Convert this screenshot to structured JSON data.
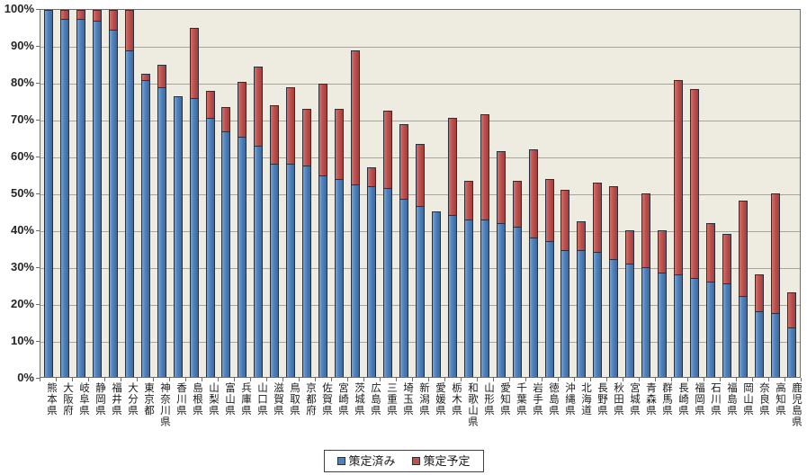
{
  "chart_data": {
    "type": "bar",
    "stacked": true,
    "title": "",
    "xlabel": "",
    "ylabel": "",
    "ylim": [
      0,
      100
    ],
    "y_tick_labels": [
      "100%",
      "90%",
      "80%",
      "70%",
      "60%",
      "50%",
      "40%",
      "30%",
      "20%",
      "10%",
      "0%"
    ],
    "grid": true,
    "legend_position": "bottom",
    "plot_background": "#EEECE1",
    "gridline_color": "#A8A49B",
    "categories": [
      "熊本県",
      "大阪府",
      "岐阜県",
      "静岡県",
      "福井県",
      "大分県",
      "東京都",
      "神奈川県",
      "香川県",
      "島根県",
      "山梨県",
      "富山県",
      "兵庫県",
      "山口県",
      "滋賀県",
      "鳥取県",
      "京都府",
      "佐賀県",
      "宮崎県",
      "茨城県",
      "広島県",
      "三重県",
      "埼玉県",
      "新潟県",
      "愛媛県",
      "栃木県",
      "和歌山県",
      "山形県",
      "愛知県",
      "千葉県",
      "岩手県",
      "徳島県",
      "沖縄県",
      "北海道",
      "長野県",
      "秋田県",
      "宮城県",
      "青森県",
      "群馬県",
      "長崎県",
      "福岡県",
      "石川県",
      "福島県",
      "岡山県",
      "奈良県",
      "高知県",
      "鹿児島県"
    ],
    "series": [
      {
        "name": "策定済み",
        "color": "#4F81BD",
        "values": [
          100,
          97.5,
          97.5,
          97,
          94.5,
          89,
          81,
          79,
          76.5,
          76,
          70.5,
          67,
          65.5,
          63,
          58,
          58,
          57.5,
          55,
          54,
          52.5,
          52,
          51.5,
          48.5,
          46.5,
          45,
          44,
          43,
          43,
          42,
          41,
          38,
          37,
          34.5,
          34.5,
          34,
          32,
          31,
          30,
          28.5,
          28,
          27,
          26,
          25.5,
          22,
          18,
          17.5,
          13.5
        ]
      },
      {
        "name": "策定予定",
        "color": "#C0504D",
        "values": [
          0,
          2.5,
          2.5,
          3,
          5.5,
          11,
          1.5,
          6,
          0,
          19,
          7.5,
          6.5,
          15,
          21.5,
          16,
          21,
          15.5,
          25,
          19,
          36.5,
          5,
          21,
          20.5,
          17,
          0,
          26.5,
          10.5,
          28.5,
          19.5,
          12.5,
          24,
          17,
          16.5,
          8,
          19,
          20,
          9,
          20,
          11.5,
          53,
          51.5,
          16,
          13.5,
          26,
          10,
          32.5,
          9.5
        ]
      }
    ]
  },
  "legend": {
    "items": [
      {
        "label": "策定済み",
        "color": "#4F81BD"
      },
      {
        "label": "策定予定",
        "color": "#C0504D"
      }
    ]
  }
}
